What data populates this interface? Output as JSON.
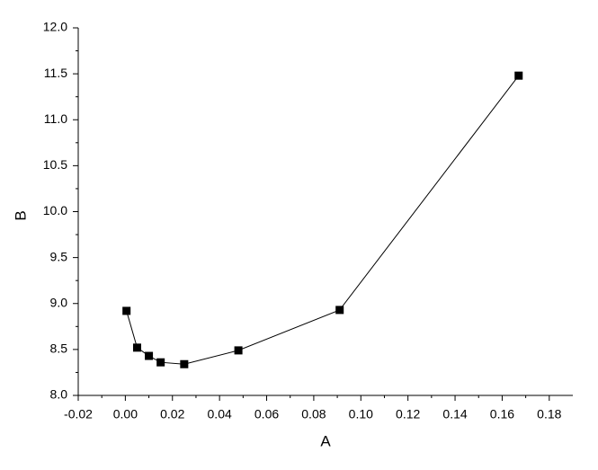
{
  "chart_data": {
    "type": "line",
    "x_label": "A",
    "y_label": "B",
    "x": [
      0.0005,
      0.005,
      0.01,
      0.015,
      0.025,
      0.048,
      0.091,
      0.167
    ],
    "values": [
      8.92,
      8.52,
      8.43,
      8.36,
      8.34,
      8.49,
      8.93,
      11.48
    ],
    "color": "#000000",
    "marker": "square",
    "xlim": [
      -0.02,
      0.19
    ],
    "xticks": [
      -0.02,
      {
        "value": 0,
        "label": "0.00"
      },
      0.02,
      0.04,
      0.06,
      0.08,
      {
        "value": 0.1,
        "label": "0.10"
      },
      0.12,
      0.14,
      0.16,
      0.18
    ],
    "xminor_ticks": [
      -0.01,
      0.01,
      0.03,
      0.05,
      0.07,
      0.09,
      0.11,
      0.13,
      0.15,
      0.17
    ],
    "ylim": [
      8,
      12
    ],
    "yticks": [
      {
        "value": 8,
        "label": "8.0"
      },
      8.5,
      {
        "value": 9,
        "label": "9.0"
      },
      9.5,
      {
        "value": 10,
        "label": "10.0"
      },
      10.5,
      {
        "value": 11,
        "label": "11.0"
      },
      11.5,
      {
        "value": 12,
        "label": "12.0"
      }
    ],
    "yminor_ticks": [
      8.25,
      8.75,
      9.25,
      9.75,
      10.25,
      10.75,
      11.25,
      11.75
    ]
  }
}
